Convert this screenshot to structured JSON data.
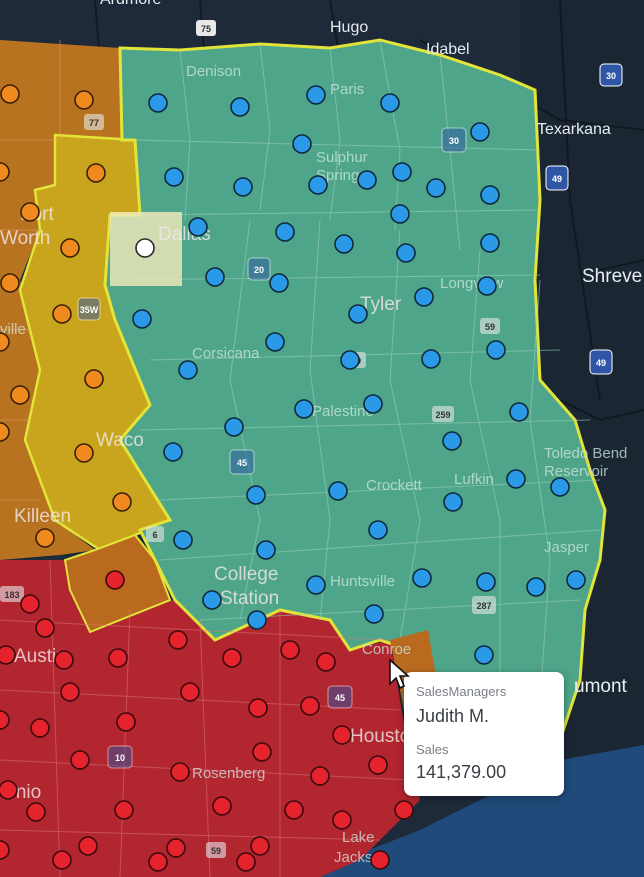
{
  "map_labels": {
    "ardmore": "Ardmore",
    "hugo": "Hugo",
    "idabel": "Idabel",
    "denison": "Denison",
    "paris": "Paris",
    "texarkana": "Texarkana",
    "sulphur_springs_1": "Sulphur",
    "sulphur_springs_2": "Springs",
    "fort_worth_1": "Fort",
    "fort_worth_2": "Worth",
    "dallas": "Dallas",
    "shreveport": "Shreve",
    "longview": "Longview",
    "tyler": "Tyler",
    "corsicana": "Corsicana",
    "waco": "Waco",
    "palestine": "Palestine",
    "toledo_bend_1": "Toledo Bend",
    "toledo_bend_2": "Reservoir",
    "lufkin": "Lufkin",
    "killeen": "Killeen",
    "crockett": "Crockett",
    "jasper": "Jasper",
    "college_station_1": "College",
    "college_station_2": "Station",
    "huntsville": "Huntsville",
    "austin": "Austin",
    "conroe": "Conroe",
    "beaumont": "umont",
    "houston": "Houston",
    "rosenberg": "Rosenberg",
    "san_antonio": "tonio",
    "lake_jackson_1": "Lake",
    "lake_jackson_2": "Jackson",
    "burleson": "ville"
  },
  "shields": {
    "s75": "75",
    "s30": "30",
    "s30b": "30",
    "s49a": "49",
    "s49b": "49",
    "s20": "20",
    "s59": "59",
    "s35w": "35W",
    "s45": "45",
    "s259": "259",
    "s69": "69",
    "s287": "287",
    "s6": "6",
    "s77": "77",
    "s10": "10",
    "s59b": "59",
    "s45b": "45",
    "s183": "183"
  },
  "territories": {
    "green_color": "#4ea58a",
    "yellow_color": "#c8a51c",
    "orange_color": "#b77320",
    "red_color": "#b22630",
    "border_color": "#e2e43a",
    "selected_county_color": "#efe8b9"
  },
  "tooltip": {
    "manager_label": "SalesManagers",
    "manager_value": "Judith M.",
    "sales_label": "Sales",
    "sales_value": "141,379.00"
  }
}
